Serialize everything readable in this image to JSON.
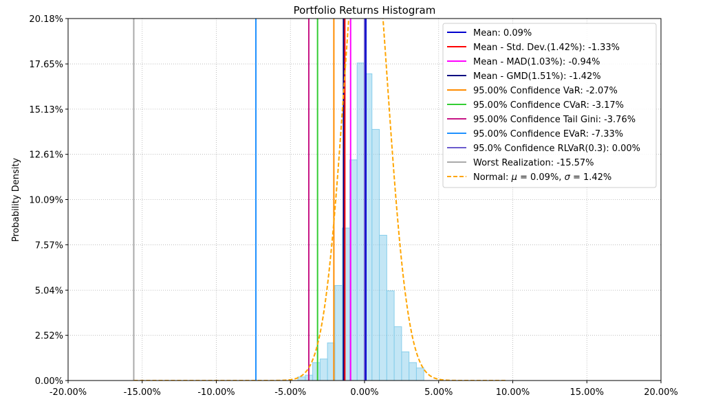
{
  "chart_data": {
    "type": "histogram",
    "title": "Portfolio Returns Histogram",
    "xlabel": "",
    "ylabel": "Probability Density",
    "xlim": [
      -20.0,
      20.0
    ],
    "ylim": [
      0.0,
      20.18
    ],
    "grid": true,
    "legend_position": "top-right",
    "x_tick_labels": [
      "-20.00%",
      "-15.00%",
      "-10.00%",
      "-5.00%",
      "0.00%",
      "5.00%",
      "10.00%",
      "15.00%",
      "20.00%"
    ],
    "x_tick_values": [
      -20,
      -15,
      -10,
      -5,
      0,
      5,
      10,
      15,
      20
    ],
    "y_tick_labels": [
      "0.00%",
      "2.52%",
      "5.04%",
      "7.57%",
      "10.09%",
      "12.61%",
      "15.13%",
      "17.65%",
      "20.18%"
    ],
    "y_tick_values": [
      0.0,
      2.52,
      5.04,
      7.57,
      10.09,
      12.61,
      15.13,
      17.65,
      20.18
    ],
    "histogram": {
      "color": "#87ceeb",
      "bins": [
        {
          "x0": -4.5,
          "x1": -4.0,
          "value": 0.2
        },
        {
          "x0": -4.0,
          "x1": -3.5,
          "value": 0.3
        },
        {
          "x0": -3.5,
          "x1": -3.0,
          "value": 1.0
        },
        {
          "x0": -3.0,
          "x1": -2.5,
          "value": 1.2
        },
        {
          "x0": -2.5,
          "x1": -2.0,
          "value": 2.1
        },
        {
          "x0": -2.0,
          "x1": -1.5,
          "value": 5.3
        },
        {
          "x0": -1.5,
          "x1": -1.0,
          "value": 8.5
        },
        {
          "x0": -1.0,
          "x1": -0.5,
          "value": 12.3
        },
        {
          "x0": -0.5,
          "x1": 0.0,
          "value": 17.7
        },
        {
          "x0": 0.0,
          "x1": 0.5,
          "value": 17.1
        },
        {
          "x0": 0.5,
          "x1": 1.0,
          "value": 14.0
        },
        {
          "x0": 1.0,
          "x1": 1.5,
          "value": 8.1
        },
        {
          "x0": 1.5,
          "x1": 2.0,
          "value": 5.0
        },
        {
          "x0": 2.0,
          "x1": 2.5,
          "value": 3.0
        },
        {
          "x0": 2.5,
          "x1": 3.0,
          "value": 1.6
        },
        {
          "x0": 3.0,
          "x1": 3.5,
          "value": 1.0
        },
        {
          "x0": 3.5,
          "x1": 4.0,
          "value": 0.7
        }
      ]
    },
    "normal_curve": {
      "label": "Normal: μ = 0.09%, σ = 1.42%",
      "label_main": "Normal: ",
      "label_mu": "μ",
      "label_mu_value": " = 0.09%, ",
      "label_sigma": "σ",
      "label_sigma_value": " = 1.42%",
      "mu": 0.09,
      "sigma": 1.42,
      "x_range": [
        -15.57,
        9.5
      ],
      "color": "#ffa500",
      "style": "dashed"
    },
    "vlines": [
      {
        "label": "Mean: 0.09%",
        "x": 0.09,
        "color": "#0000cd"
      },
      {
        "label": "Mean - Std. Dev.(1.42%): -1.33%",
        "x": -1.33,
        "color": "#ff0000"
      },
      {
        "label": "Mean - MAD(1.03%): -0.94%",
        "x": -0.94,
        "color": "#ff00ff"
      },
      {
        "label": "Mean - GMD(1.51%): -1.42%",
        "x": -1.42,
        "color": "#000080"
      },
      {
        "label": "95.00% Confidence VaR: -2.07%",
        "x": -2.07,
        "color": "#ff8c00"
      },
      {
        "label": "95.00% Confidence CVaR: -3.17%",
        "x": -3.17,
        "color": "#32cd32"
      },
      {
        "label": "95.00% Confidence Tail Gini: -3.76%",
        "x": -3.76,
        "color": "#c71585"
      },
      {
        "label": "95.00% Confidence EVaR: -7.33%",
        "x": -7.33,
        "color": "#1e90ff"
      },
      {
        "label": "95.0% Confidence RLVaR(0.3): 0.00%",
        "x": 0.0,
        "color": "#6a5acd"
      },
      {
        "label": "Worst Realization: -15.57%",
        "x": -15.57,
        "color": "#a9a9a9"
      }
    ]
  }
}
